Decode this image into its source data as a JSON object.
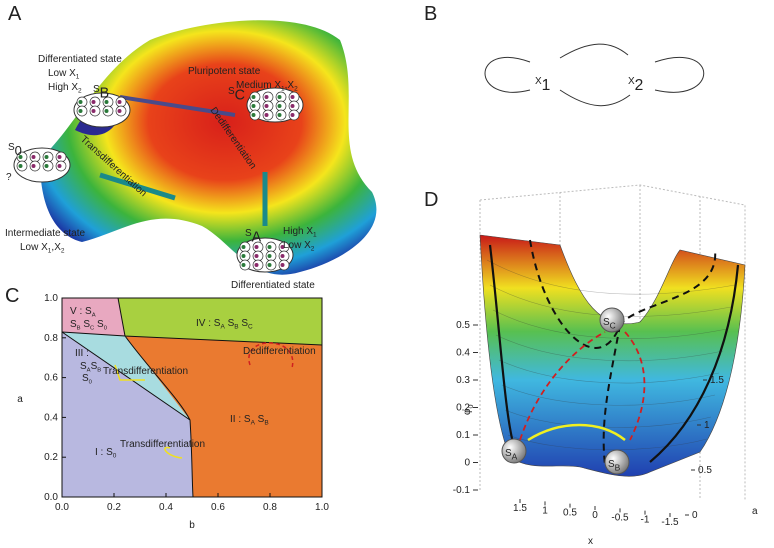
{
  "panels": {
    "A": {
      "letter": "A",
      "labels": [
        [
          "Differentiated state"
        ],
        [
          "Low X",
          {
            "sub": "1"
          }
        ],
        [
          "High X",
          {
            "sub": "2"
          }
        ],
        [
          "S",
          {
            "sub": "B"
          }
        ],
        [
          "S",
          {
            "sub": "C"
          }
        ],
        [
          "Pluripotent state"
        ],
        [
          "Medium X",
          {
            "sub": "1"
          },
          ",X",
          {
            "sub": "2"
          }
        ],
        [
          "Dedifferentiation"
        ],
        [
          "Transdifferentiation"
        ],
        [
          "S",
          {
            "sub": "0"
          }
        ],
        [
          "?"
        ],
        [
          "Intermediate state"
        ],
        [
          "Low X",
          {
            "sub": "1"
          },
          ",X",
          {
            "sub": "2"
          }
        ],
        [
          "S",
          {
            "sub": "A"
          }
        ],
        [
          "High X",
          {
            "sub": "1"
          }
        ],
        [
          "Low X",
          {
            "sub": "2"
          }
        ],
        [
          "Differentiated state"
        ]
      ]
    },
    "B": {
      "letter": "B",
      "nodes": [
        [
          "X",
          {
            "sub": "1"
          }
        ],
        [
          "X",
          {
            "sub": "2"
          }
        ]
      ]
    },
    "C": {
      "letter": "C",
      "xlabel": "b",
      "ylabel": "a",
      "xlim": [
        0,
        1
      ],
      "ylim": [
        0,
        1
      ],
      "xticks": [
        {
          "value": 0,
          "label": "0.0"
        },
        {
          "value": 0.2,
          "label": "0.2"
        },
        {
          "value": 0.4,
          "label": "0.4"
        },
        {
          "value": 0.6,
          "label": "0.6"
        },
        {
          "value": 0.8,
          "label": "0.8"
        },
        {
          "value": 1,
          "label": "1.0"
        }
      ],
      "yticks": [
        {
          "value": 0,
          "label": "0.0"
        },
        {
          "value": 0.2,
          "label": "0.2"
        },
        {
          "value": 0.4,
          "label": "0.4"
        },
        {
          "value": 0.6,
          "label": "0.6"
        },
        {
          "value": 0.8,
          "label": "0.8"
        },
        {
          "value": 1,
          "label": "1.0"
        }
      ],
      "labels": [
        [
          "V : S",
          {
            "sub": "A"
          }
        ],
        [
          "S",
          {
            "sub": "B"
          },
          " S",
          {
            "sub": "C"
          },
          " S",
          {
            "sub": "0"
          }
        ],
        [
          "IV : S",
          {
            "sub": "A"
          },
          " S",
          {
            "sub": "B"
          },
          " S",
          {
            "sub": "C"
          }
        ],
        [
          "III :"
        ],
        [
          "S",
          {
            "sub": "A"
          },
          "S",
          {
            "sub": "B"
          }
        ],
        [
          "S",
          {
            "sub": "0"
          }
        ],
        [
          "II : S",
          {
            "sub": "A"
          },
          " S",
          {
            "sub": "B"
          }
        ],
        [
          "I : S",
          {
            "sub": "0"
          }
        ],
        [
          "Dedifferentiation"
        ],
        [
          "Transdifferentiation"
        ],
        [
          "Transdifferentiation"
        ]
      ]
    },
    "D": {
      "letter": "D",
      "zlabel": [
        "φ",
        {
          "sub": "0"
        }
      ],
      "xlabel": "x",
      "alabel": "a",
      "zlim": [
        -0.1,
        0.5
      ],
      "zticks": [
        0.5,
        0.4,
        0.3,
        0.2,
        0.1,
        0,
        -0.1
      ],
      "xlim": [
        1.5,
        -1.5
      ],
      "xticks": [
        1.5,
        1,
        0.5,
        0,
        -0.5,
        -1,
        -1.5
      ],
      "alim": [
        0,
        1.5
      ],
      "aticks": [
        1.5,
        1,
        0.5,
        0
      ],
      "labels": [
        [
          "S",
          {
            "sub": "C"
          }
        ],
        [
          "S",
          {
            "sub": "A"
          }
        ],
        [
          "S",
          {
            "sub": "B"
          }
        ]
      ]
    }
  }
}
